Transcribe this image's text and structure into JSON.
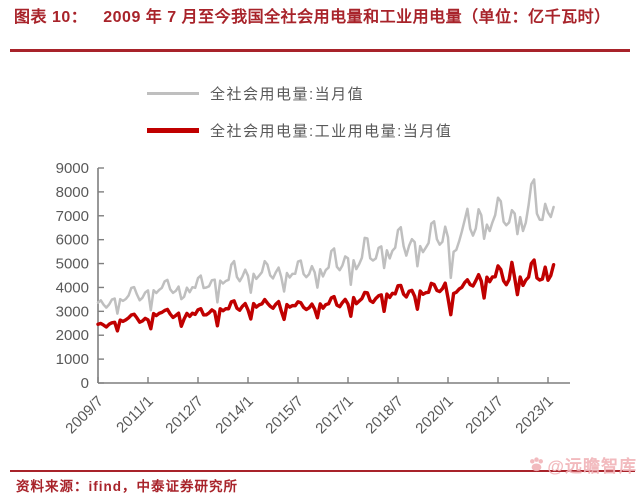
{
  "header": {
    "figure_label": "图表 10：",
    "title": "2009 年 7 月至今我国全社会用电量和工业用电量（单位：亿千瓦时）"
  },
  "footer": {
    "source": "资料来源：ifind，中泰证券研究所",
    "watermark": "@远瞻智库"
  },
  "colors": {
    "accent": "#a8232a",
    "total_line": "#bfbfbf",
    "industrial_line": "#c00000",
    "axis": "#7f7f7f",
    "tick_text": "#595959",
    "watermark": "#f1b3b8"
  },
  "chart_data": {
    "type": "line",
    "title": "2009年7月至今我国全社会用电量和工业用电量（单位：亿千瓦时）",
    "xlabel": "",
    "ylabel": "",
    "ylim": [
      0,
      9000
    ],
    "ytick_step": 1000,
    "grid": false,
    "legend_position": "top",
    "x_start": "2009/7",
    "x_end": "2023/3",
    "x_frequency": "monthly",
    "x_tick_every": 18,
    "x_tick_labels": [
      "2009/7",
      "2011/1",
      "2012/7",
      "2014/1",
      "2015/7",
      "2017/1",
      "2018/7",
      "2020/1",
      "2021/7",
      "2023/1"
    ],
    "series": [
      {
        "id": "total",
        "name": "全社会用电量:当月值",
        "color": "#bfbfbf",
        "values": [
          3364,
          3461,
          3276,
          3157,
          3285,
          3490,
          3531,
          2907,
          3508,
          3438,
          3516,
          3662,
          3982,
          4014,
          3710,
          3463,
          3568,
          3787,
          3878,
          3048,
          3886,
          3768,
          3893,
          3986,
          4258,
          4314,
          3924,
          3770,
          3856,
          4035,
          3514,
          3610,
          3988,
          3799,
          4012,
          3987,
          4390,
          4495,
          3977,
          3998,
          4051,
          4302,
          4324,
          3374,
          4285,
          4165,
          4269,
          4318,
          4950,
          5103,
          4442,
          4261,
          4458,
          4742,
          4487,
          3778,
          4571,
          4356,
          4492,
          4638,
          5097,
          4959,
          4506,
          4377,
          4632,
          4830,
          4427,
          3832,
          4603,
          4415,
          4567,
          4573,
          5083,
          5124,
          4563,
          4429,
          4560,
          4888,
          4630,
          3994,
          4762,
          4461,
          4730,
          4829,
          5524,
          5631,
          4863,
          4723,
          4919,
          5299,
          5219,
          4109,
          5139,
          4767,
          4968,
          5244,
          6072,
          6047,
          5219,
          5130,
          5211,
          5660,
          5720,
          4812,
          5553,
          5217,
          5534,
          5663,
          6400,
          6521,
          5731,
          5331,
          5745,
          6021,
          5898,
          4891,
          5732,
          5479,
          5665,
          5862,
          6672,
          6770,
          6020,
          5790,
          5912,
          6544,
          6099,
          4398,
          5493,
          5572,
          5926,
          6350,
          6824,
          7294,
          6454,
          6172,
          6467,
          7277,
          7022,
          6041,
          6631,
          6361,
          6724,
          7033,
          7758,
          7607,
          6751,
          6603,
          6718,
          7234,
          7092,
          6235,
          6944,
          6362,
          6716,
          7451,
          8324,
          8520,
          7092,
          6834,
          6828,
          7497,
          7137,
          6950,
          7369
        ]
      },
      {
        "id": "industrial",
        "name": "全社会用电量:工业用电量:当月值",
        "color": "#c00000",
        "values": [
          2459,
          2495,
          2425,
          2346,
          2456,
          2521,
          2542,
          2180,
          2634,
          2577,
          2640,
          2728,
          2847,
          2878,
          2727,
          2544,
          2594,
          2706,
          2640,
          2268,
          2907,
          2820,
          2915,
          2955,
          3035,
          3082,
          2887,
          2743,
          2825,
          2922,
          2375,
          2678,
          2912,
          2787,
          2922,
          2870,
          3063,
          3109,
          2850,
          2856,
          2933,
          3061,
          2980,
          2394,
          3107,
          3022,
          3109,
          3106,
          3394,
          3437,
          3133,
          3046,
          3210,
          3322,
          3060,
          2678,
          3324,
          3178,
          3270,
          3313,
          3492,
          3344,
          3212,
          3129,
          3297,
          3409,
          3011,
          2662,
          3280,
          3179,
          3240,
          3234,
          3400,
          3362,
          3163,
          3075,
          3148,
          3301,
          3091,
          2729,
          3310,
          3133,
          3281,
          3314,
          3563,
          3615,
          3262,
          3193,
          3366,
          3498,
          3302,
          2790,
          3574,
          3319,
          3430,
          3535,
          3790,
          3776,
          3446,
          3376,
          3537,
          3650,
          3690,
          3000,
          3721,
          3582,
          3756,
          3730,
          4073,
          4081,
          3716,
          3602,
          3839,
          3877,
          3626,
          3086,
          3853,
          3711,
          3781,
          3796,
          4168,
          4122,
          3876,
          3828,
          3946,
          4182,
          3560,
          2861,
          3749,
          3795,
          3929,
          4006,
          4204,
          4322,
          4117,
          4060,
          4283,
          4533,
          4260,
          3560,
          4427,
          4242,
          4437,
          4446,
          4900,
          4750,
          4278,
          4115,
          4332,
          5050,
          4400,
          3700,
          4436,
          4084,
          4308,
          4435,
          5000,
          5150,
          4400,
          4307,
          4355,
          4850,
          4300,
          4500,
          4950
        ]
      }
    ]
  }
}
